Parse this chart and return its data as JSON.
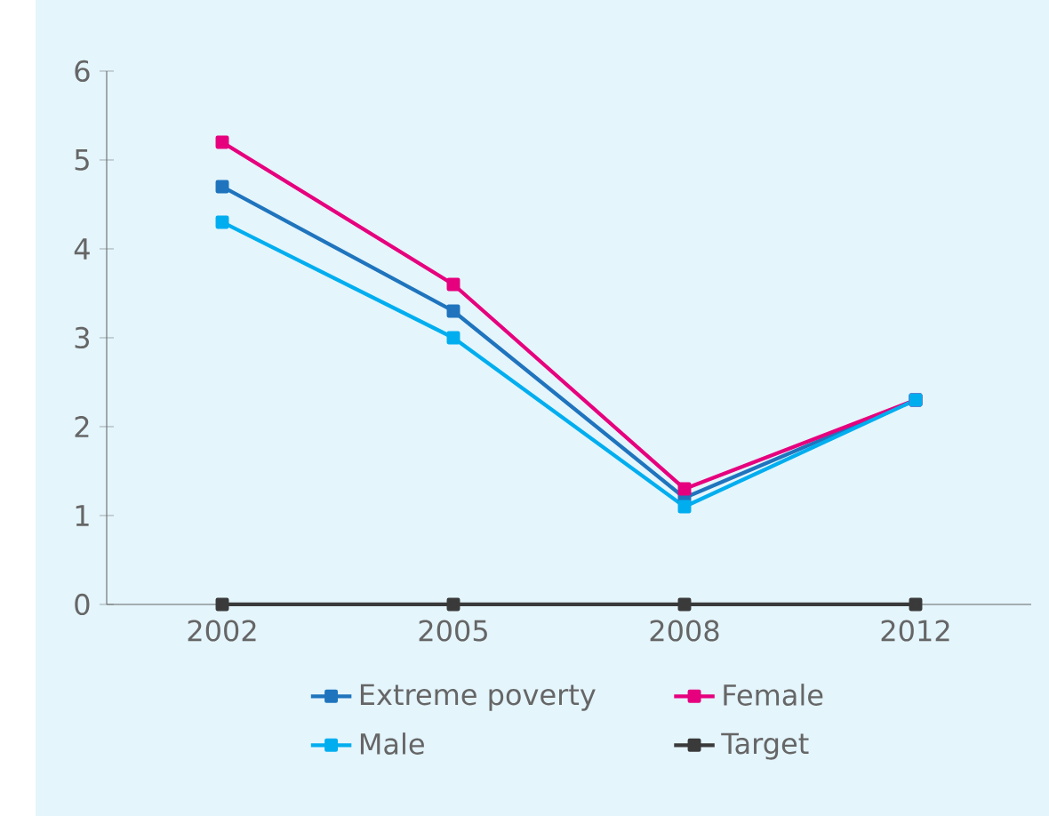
{
  "chart_data": {
    "type": "line",
    "categories": [
      "2002",
      "2005",
      "2008",
      "2012"
    ],
    "series": [
      {
        "name": "Extreme poverty",
        "color": "#1f74bd",
        "values": [
          4.7,
          3.3,
          1.2,
          2.3
        ]
      },
      {
        "name": "Female",
        "color": "#e6007e",
        "values": [
          5.2,
          3.6,
          1.3,
          2.3
        ]
      },
      {
        "name": "Male",
        "color": "#00aeef",
        "values": [
          4.3,
          3.0,
          1.1,
          2.3
        ]
      },
      {
        "name": "Target",
        "color": "#3a3a3a",
        "values": [
          0,
          0,
          0,
          0
        ]
      }
    ],
    "ylim": [
      0,
      6
    ],
    "yticks": [
      0,
      1,
      2,
      3,
      4,
      5,
      6
    ],
    "grid": false,
    "legend": "bottom",
    "marker": "square",
    "line_style": "solid"
  }
}
